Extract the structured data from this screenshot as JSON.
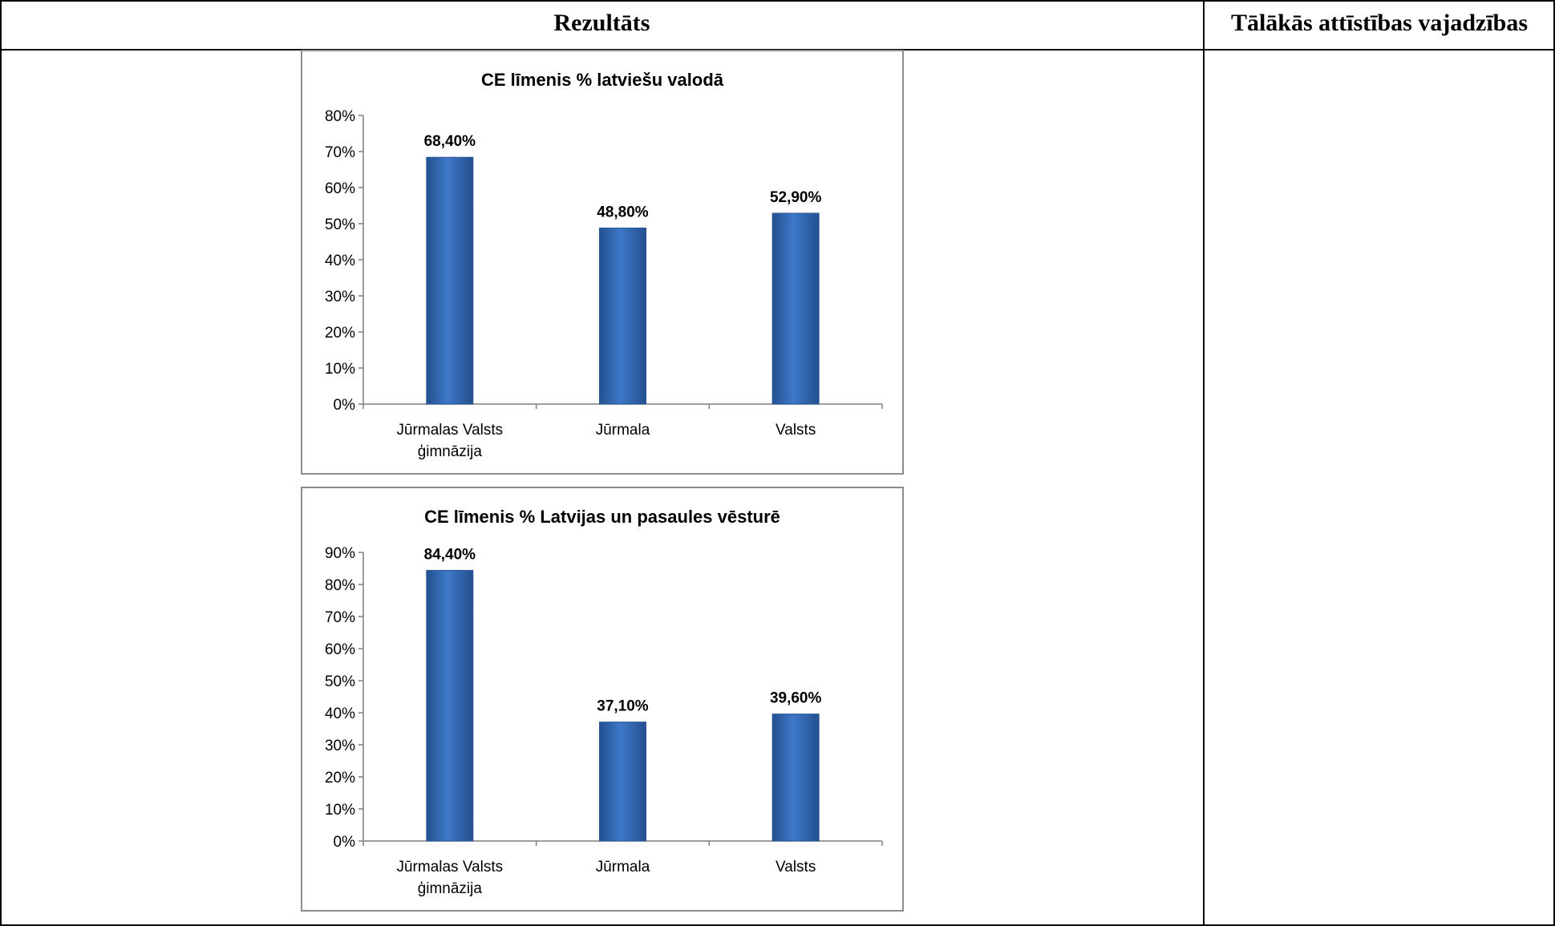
{
  "table": {
    "header_result": "Rezultāts",
    "header_needs": "Tālākās attīstības vajadzības"
  },
  "chart_data": [
    {
      "type": "bar",
      "title": "CE līmenis % latviešu valodā",
      "categories": [
        [
          "Jūrmalas Valsts",
          "ģimnāzija"
        ],
        [
          "Jūrmala"
        ],
        [
          "Valsts"
        ]
      ],
      "values": [
        68.4,
        48.8,
        52.9
      ],
      "value_labels": [
        "68,40%",
        "48,80%",
        "52,90%"
      ],
      "yticks": [
        "0%",
        "10%",
        "20%",
        "30%",
        "40%",
        "50%",
        "60%",
        "70%",
        "80%"
      ],
      "ylim": [
        0,
        80
      ],
      "color": "#3e78c8",
      "grid": false,
      "xlabel": "",
      "ylabel": ""
    },
    {
      "type": "bar",
      "title": "CE līmenis % Latvijas un pasaules vēsturē",
      "categories": [
        [
          "Jūrmalas Valsts",
          "ģimnāzija"
        ],
        [
          "Jūrmala"
        ],
        [
          "Valsts"
        ]
      ],
      "values": [
        84.4,
        37.1,
        39.6
      ],
      "value_labels": [
        "84,40%",
        "37,10%",
        "39,60%"
      ],
      "yticks": [
        "0%",
        "10%",
        "20%",
        "30%",
        "40%",
        "50%",
        "60%",
        "70%",
        "80%",
        "90%"
      ],
      "ylim": [
        0,
        90
      ],
      "color": "#3e78c8",
      "grid": false,
      "xlabel": "",
      "ylabel": ""
    }
  ]
}
